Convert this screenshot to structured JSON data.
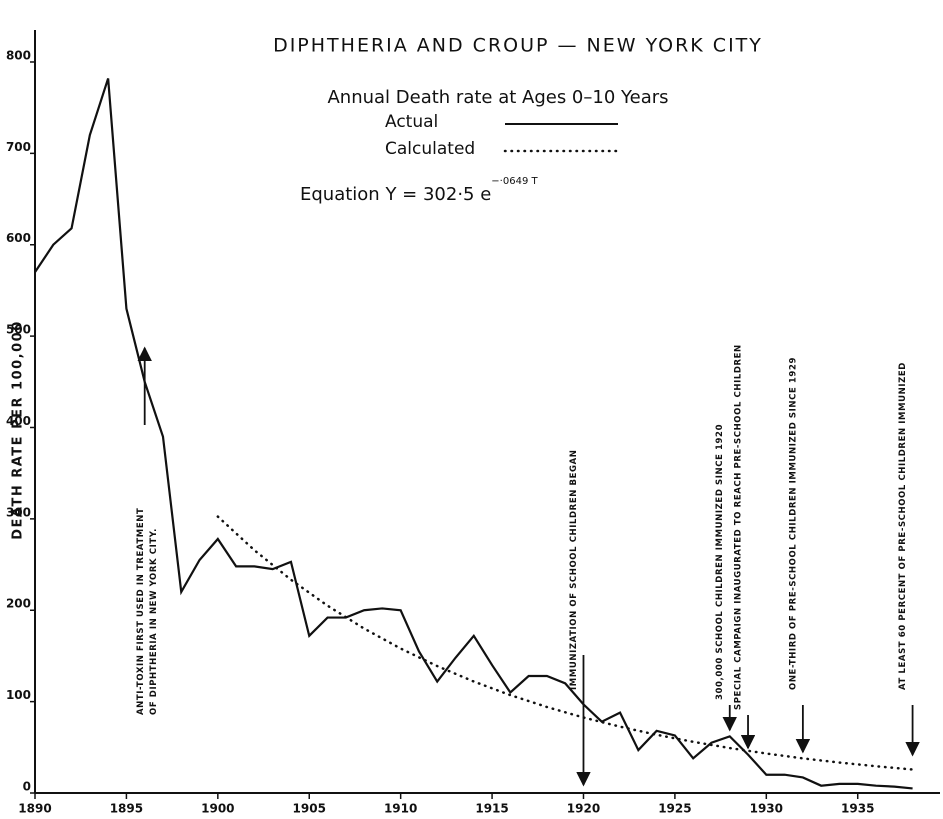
{
  "chart_data": {
    "type": "line",
    "title": "DIPHTHERIA AND CROUP — NEW YORK CITY",
    "subtitle": "Annual  Death rate at Ages  0–10  Years",
    "equation": "Equation   Y = 302·5 e",
    "equation_exponent": "−·0649 T",
    "y_label": "DEATH RATE PER 100,000",
    "xlim": [
      1890,
      1939.5
    ],
    "ylim": [
      0,
      835
    ],
    "xticks": [
      1890,
      1895,
      1900,
      1905,
      1910,
      1915,
      1920,
      1925,
      1930,
      1935
    ],
    "yticks": [
      0,
      100,
      200,
      300,
      400,
      500,
      600,
      700,
      800
    ],
    "series": [
      {
        "name": "Actual",
        "color": "#111111",
        "style": "solid",
        "x": [
          1890,
          1891,
          1892,
          1893,
          1894,
          1895,
          1896,
          1897,
          1898,
          1899,
          1900,
          1901,
          1902,
          1903,
          1904,
          1905,
          1906,
          1907,
          1908,
          1909,
          1910,
          1911,
          1912,
          1913,
          1914,
          1915,
          1916,
          1917,
          1918,
          1919,
          1920,
          1921,
          1922,
          1923,
          1924,
          1925,
          1926,
          1927,
          1928,
          1929,
          1930,
          1931,
          1932,
          1933,
          1934,
          1935,
          1936,
          1937,
          1938
        ],
        "values": [
          570,
          600,
          618,
          720,
          782,
          530,
          450,
          390,
          220,
          255,
          278,
          248,
          248,
          245,
          253,
          172,
          192,
          192,
          200,
          202,
          200,
          155,
          122,
          148,
          172,
          140,
          110,
          128,
          128,
          120,
          97,
          78,
          88,
          47,
          68,
          63,
          38,
          55,
          62,
          42,
          20,
          20,
          17,
          8,
          10,
          10,
          8,
          7,
          5
        ]
      },
      {
        "name": "Calculated",
        "color": "#111111",
        "style": "dotted",
        "x": [
          1900,
          1902,
          1904,
          1906,
          1908,
          1910,
          1912,
          1914,
          1916,
          1918,
          1920,
          1922,
          1924,
          1926,
          1928,
          1930,
          1932,
          1934,
          1936,
          1938
        ],
        "values": [
          302.5,
          265.7,
          233.4,
          205.0,
          180.0,
          158.1,
          138.9,
          122.0,
          107.1,
          94.1,
          82.6,
          72.6,
          63.7,
          56.0,
          49.2,
          43.2,
          37.9,
          33.3,
          29.3,
          25.7
        ]
      }
    ],
    "annotations": [
      {
        "x": 1896,
        "lines": [
          "ANTI-TOXIN FIRST USED IN TREATMENT",
          "OF DIPHTHERIA IN NEW YORK CITY."
        ]
      },
      {
        "x": 1920,
        "lines": [
          "IMMUNIZATION OF SCHOOL CHILDREN BEGAN"
        ]
      },
      {
        "x": 1928,
        "lines": [
          "300,000 SCHOOL CHILDREN IMMUNIZED SINCE 1920"
        ]
      },
      {
        "x": 1929,
        "lines": [
          "SPECIAL CAMPAIGN INAUGURATED TO REACH PRE-SCHOOL CHILDREN"
        ]
      },
      {
        "x": 1932,
        "lines": [
          "ONE-THIRD OF PRE-SCHOOL CHILDREN IMMUNIZED SINCE 1929"
        ]
      },
      {
        "x": 1938,
        "lines": [
          "AT LEAST 60 PERCENT OF PRE-SCHOOL CHILDREN IMMUNIZED"
        ]
      }
    ]
  }
}
